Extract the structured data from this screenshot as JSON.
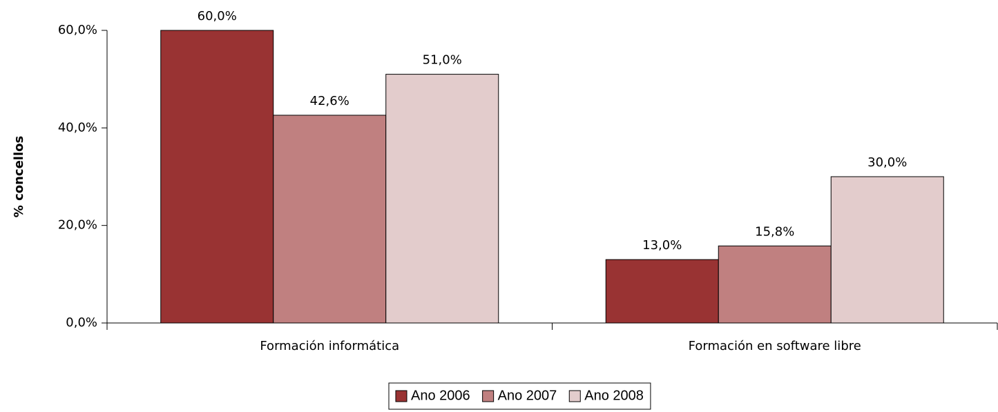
{
  "chart_data": {
    "type": "bar",
    "y_label": "% concellos",
    "categories": [
      "Formación informática",
      "Formación en software libre"
    ],
    "series": [
      {
        "name": "Ano 2006",
        "color": "#993333",
        "values": [
          60,
          13
        ],
        "value_labels": [
          "60,0%",
          "13,0%"
        ]
      },
      {
        "name": "Ano 2007",
        "color": "#c08080",
        "values": [
          42.6,
          15.8
        ],
        "value_labels": [
          "42,6%",
          "15,8%"
        ]
      },
      {
        "name": "Ano 2008",
        "color": "#e3cccc",
        "values": [
          51,
          30
        ],
        "value_labels": [
          "51,0%",
          "30,0%"
        ]
      }
    ],
    "ylim": [
      0,
      60
    ],
    "yticks": [
      {
        "value": 0,
        "label": "0,0%"
      },
      {
        "value": 20,
        "label": "20,0%"
      },
      {
        "value": 40,
        "label": "40,0%"
      },
      {
        "value": 60,
        "label": "60,0%"
      }
    ],
    "legend": "bottom"
  }
}
